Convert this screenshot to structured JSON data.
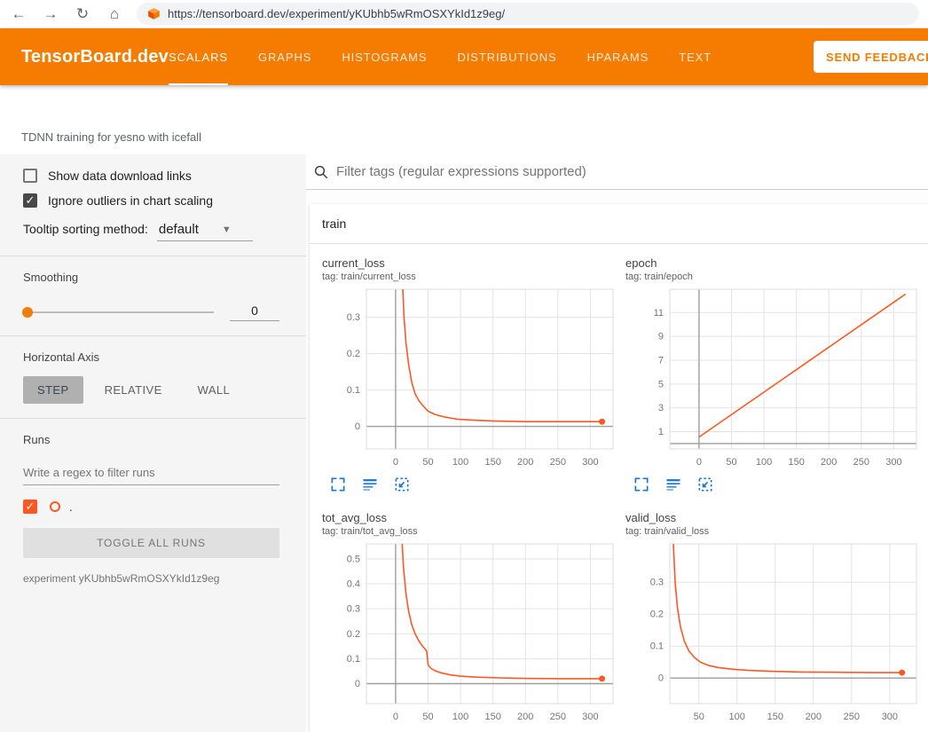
{
  "colors": {
    "accent": "#f57c00",
    "run": "#ff5722",
    "checkbox": "#484848",
    "icon_blue": "#1976d2"
  },
  "browser": {
    "url": "https://tensorboard.dev/experiment/yKUbhb5wRmOSXYkId1z9eg/"
  },
  "header": {
    "logo": "TensorBoard.dev",
    "tabs": [
      {
        "label": "SCALARS",
        "active": true
      },
      {
        "label": "GRAPHS",
        "active": false
      },
      {
        "label": "HISTOGRAMS",
        "active": false
      },
      {
        "label": "DISTRIBUTIONS",
        "active": false
      },
      {
        "label": "HPARAMS",
        "active": false
      },
      {
        "label": "TEXT",
        "active": false
      }
    ],
    "feedback_label": "SEND FEEDBACK"
  },
  "experiment": {
    "description": "TDNN training for yesno with icefall"
  },
  "sidebar": {
    "show_links_label": "Show data download links",
    "show_links_checked": false,
    "ignore_outliers_label": "Ignore outliers in chart scaling",
    "ignore_outliers_checked": true,
    "tooltip_label": "Tooltip sorting method:",
    "tooltip_value": "default",
    "smoothing_label": "Smoothing",
    "smoothing_value": "0",
    "axis_label": "Horizontal Axis",
    "axis_options": [
      {
        "label": "STEP",
        "selected": true
      },
      {
        "label": "RELATIVE",
        "selected": false
      },
      {
        "label": "WALL",
        "selected": false
      }
    ],
    "runs_label": "Runs",
    "runs_filter_placeholder": "Write a regex to filter runs",
    "run_name": ".",
    "toggle_all_label": "TOGGLE ALL RUNS",
    "experiment_caption": "experiment yKUbhb5wRmOSXYkId1z9eg"
  },
  "main": {
    "filter_placeholder": "Filter tags (regular expressions supported)",
    "section_title": "train",
    "charts": [
      {
        "type": "line",
        "title": "current_loss",
        "tag": "tag: train/current_loss",
        "xlim": [
          -45,
          335
        ],
        "ylim": [
          -0.062,
          0.377
        ],
        "xticks": [
          0,
          50,
          100,
          150,
          200,
          250,
          300
        ],
        "yticks": [
          0,
          0.1,
          0.2,
          0.3
        ],
        "marker": true,
        "points": [
          [
            4,
            1.2
          ],
          [
            6,
            0.8
          ],
          [
            8,
            0.55
          ],
          [
            10,
            0.42
          ],
          [
            13,
            0.3
          ],
          [
            16,
            0.23
          ],
          [
            20,
            0.17
          ],
          [
            25,
            0.12
          ],
          [
            30,
            0.09
          ],
          [
            36,
            0.07
          ],
          [
            43,
            0.055
          ],
          [
            50,
            0.042
          ],
          [
            60,
            0.033
          ],
          [
            75,
            0.026
          ],
          [
            95,
            0.02
          ],
          [
            120,
            0.017
          ],
          [
            150,
            0.015
          ],
          [
            200,
            0.013
          ],
          [
            250,
            0.013
          ],
          [
            318,
            0.013
          ]
        ]
      },
      {
        "type": "line",
        "title": "epoch",
        "tag": "tag: train/epoch",
        "xlim": [
          -45,
          335
        ],
        "ylim": [
          -0.45,
          12.96
        ],
        "xticks": [
          0,
          50,
          100,
          150,
          200,
          250,
          300
        ],
        "yticks": [
          1,
          3,
          5,
          7,
          9,
          11
        ],
        "marker": false,
        "points": [
          [
            0,
            0.55
          ],
          [
            318,
            12.55
          ]
        ]
      },
      {
        "type": "line",
        "title": "tot_avg_loss",
        "tag": "tag: train/tot_avg_loss",
        "xlim": [
          -45,
          335
        ],
        "ylim": [
          -0.08,
          0.56
        ],
        "xticks": [
          0,
          50,
          100,
          150,
          200,
          250,
          300
        ],
        "yticks": [
          0,
          0.1,
          0.2,
          0.3,
          0.4,
          0.5
        ],
        "marker": true,
        "points": [
          [
            4,
            1.2
          ],
          [
            6,
            0.9
          ],
          [
            9,
            0.62
          ],
          [
            12,
            0.47
          ],
          [
            16,
            0.36
          ],
          [
            20,
            0.29
          ],
          [
            25,
            0.235
          ],
          [
            30,
            0.2
          ],
          [
            35,
            0.175
          ],
          [
            40,
            0.155
          ],
          [
            45,
            0.14
          ],
          [
            48,
            0.13
          ],
          [
            50,
            0.075
          ],
          [
            55,
            0.06
          ],
          [
            62,
            0.05
          ],
          [
            72,
            0.042
          ],
          [
            85,
            0.035
          ],
          [
            100,
            0.03
          ],
          [
            125,
            0.026
          ],
          [
            160,
            0.023
          ],
          [
            200,
            0.021
          ],
          [
            250,
            0.02
          ],
          [
            318,
            0.02
          ]
        ]
      },
      {
        "type": "line",
        "title": "valid_loss",
        "tag": "tag: train/valid_loss",
        "xlim": [
          12,
          335
        ],
        "ylim": [
          -0.08,
          0.42
        ],
        "xticks": [
          50,
          100,
          150,
          200,
          250,
          300
        ],
        "yticks": [
          0,
          0.1,
          0.2,
          0.3
        ],
        "marker": true,
        "points": [
          [
            13,
            0.9
          ],
          [
            15,
            0.55
          ],
          [
            17,
            0.4
          ],
          [
            19,
            0.3
          ],
          [
            22,
            0.22
          ],
          [
            26,
            0.16
          ],
          [
            31,
            0.115
          ],
          [
            37,
            0.085
          ],
          [
            44,
            0.065
          ],
          [
            52,
            0.05
          ],
          [
            62,
            0.04
          ],
          [
            75,
            0.033
          ],
          [
            92,
            0.028
          ],
          [
            115,
            0.024
          ],
          [
            145,
            0.021
          ],
          [
            185,
            0.019
          ],
          [
            230,
            0.018
          ],
          [
            280,
            0.017
          ],
          [
            316,
            0.017
          ]
        ]
      }
    ]
  }
}
